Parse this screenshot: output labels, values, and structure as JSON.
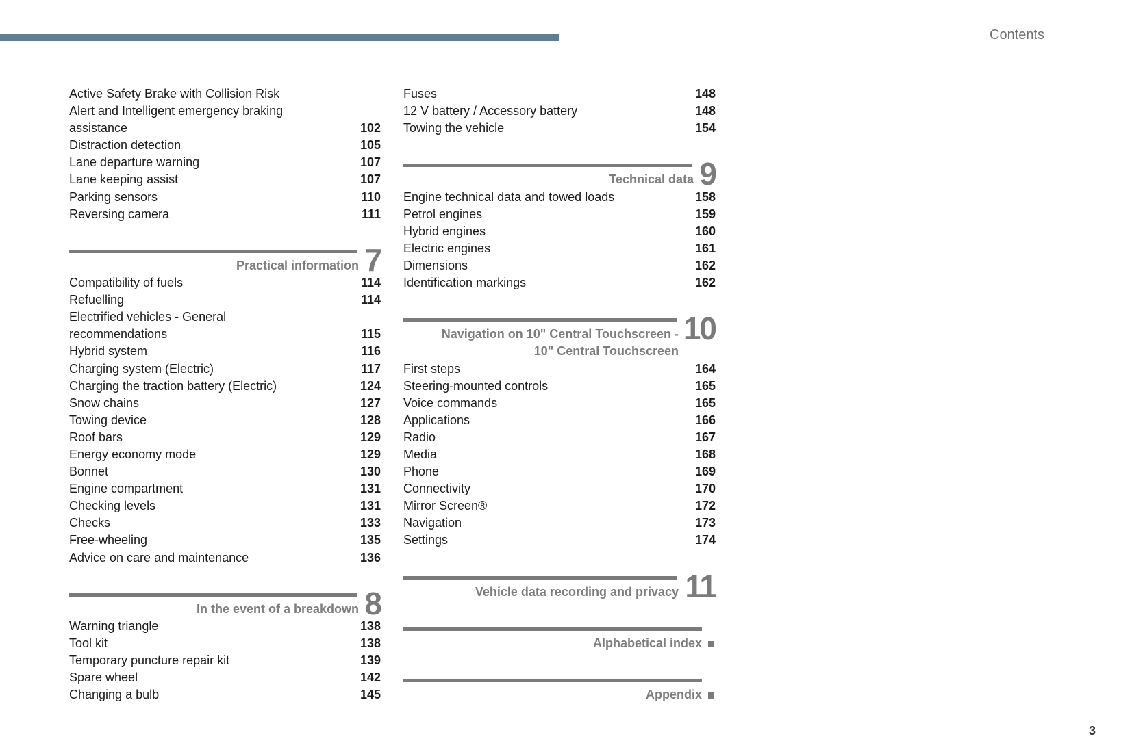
{
  "header": {
    "title": "Contents",
    "accent_color": "#5f7e93"
  },
  "page_number": "3",
  "columns": [
    {
      "blocks": [
        {
          "type": "item",
          "lines": [
            "Active Safety Brake with Collision Risk",
            "Alert and Intelligent emergency braking",
            "assistance"
          ],
          "page": "102"
        },
        {
          "type": "item",
          "lines": [
            "Distraction detection"
          ],
          "page": "105"
        },
        {
          "type": "item",
          "lines": [
            "Lane departure warning"
          ],
          "page": "107"
        },
        {
          "type": "item",
          "lines": [
            "Lane keeping assist"
          ],
          "page": "107"
        },
        {
          "type": "item",
          "lines": [
            "Parking sensors"
          ],
          "page": "110"
        },
        {
          "type": "item",
          "lines": [
            "Reversing camera"
          ],
          "page": "111"
        },
        {
          "type": "section",
          "lines": [
            "Practical information"
          ],
          "number": "7"
        },
        {
          "type": "item",
          "lines": [
            "Compatibility of fuels"
          ],
          "page": "114"
        },
        {
          "type": "item",
          "lines": [
            "Refuelling"
          ],
          "page": "114"
        },
        {
          "type": "item",
          "lines": [
            "Electrified vehicles - General",
            "recommendations"
          ],
          "page": "115"
        },
        {
          "type": "item",
          "lines": [
            "Hybrid system"
          ],
          "page": "116"
        },
        {
          "type": "item",
          "lines": [
            "Charging system (Electric)"
          ],
          "page": "117"
        },
        {
          "type": "item",
          "lines": [
            "Charging the traction battery (Electric)"
          ],
          "page": "124"
        },
        {
          "type": "item",
          "lines": [
            "Snow chains"
          ],
          "page": "127"
        },
        {
          "type": "item",
          "lines": [
            "Towing device"
          ],
          "page": "128"
        },
        {
          "type": "item",
          "lines": [
            "Roof bars"
          ],
          "page": "129"
        },
        {
          "type": "item",
          "lines": [
            "Energy economy mode"
          ],
          "page": "129"
        },
        {
          "type": "item",
          "lines": [
            "Bonnet"
          ],
          "page": "130"
        },
        {
          "type": "item",
          "lines": [
            "Engine compartment"
          ],
          "page": "131"
        },
        {
          "type": "item",
          "lines": [
            "Checking levels"
          ],
          "page": "131"
        },
        {
          "type": "item",
          "lines": [
            "Checks"
          ],
          "page": "133"
        },
        {
          "type": "item",
          "lines": [
            "Free-wheeling"
          ],
          "page": "135"
        },
        {
          "type": "item",
          "lines": [
            "Advice on care and maintenance"
          ],
          "page": "136"
        },
        {
          "type": "section",
          "lines": [
            "In the event of a breakdown"
          ],
          "number": "8"
        },
        {
          "type": "item",
          "lines": [
            "Warning triangle"
          ],
          "page": "138"
        },
        {
          "type": "item",
          "lines": [
            "Tool kit"
          ],
          "page": "138"
        },
        {
          "type": "item",
          "lines": [
            "Temporary puncture repair kit"
          ],
          "page": "139"
        },
        {
          "type": "item",
          "lines": [
            "Spare wheel"
          ],
          "page": "142"
        },
        {
          "type": "item",
          "lines": [
            "Changing a bulb"
          ],
          "page": "145"
        }
      ]
    },
    {
      "blocks": [
        {
          "type": "item",
          "lines": [
            "Fuses"
          ],
          "page": "148"
        },
        {
          "type": "item",
          "lines": [
            "12 V battery / Accessory battery"
          ],
          "page": "148"
        },
        {
          "type": "item",
          "lines": [
            "Towing the vehicle"
          ],
          "page": "154"
        },
        {
          "type": "section",
          "lines": [
            "Technical data"
          ],
          "number": "9"
        },
        {
          "type": "item",
          "lines": [
            "Engine technical data and towed loads"
          ],
          "page": "158"
        },
        {
          "type": "item",
          "lines": [
            "Petrol engines"
          ],
          "page": "159"
        },
        {
          "type": "item",
          "lines": [
            "Hybrid engines"
          ],
          "page": "160"
        },
        {
          "type": "item",
          "lines": [
            "Electric engines"
          ],
          "page": "161"
        },
        {
          "type": "item",
          "lines": [
            "Dimensions"
          ],
          "page": "162"
        },
        {
          "type": "item",
          "lines": [
            "Identification markings"
          ],
          "page": "162"
        },
        {
          "type": "section",
          "lines": [
            "Navigation on 10\" Central Touchscreen -",
            "10\" Central Touchscreen"
          ],
          "number": "10"
        },
        {
          "type": "item",
          "lines": [
            "First steps"
          ],
          "page": "164"
        },
        {
          "type": "item",
          "lines": [
            "Steering-mounted controls"
          ],
          "page": "165"
        },
        {
          "type": "item",
          "lines": [
            "Voice commands"
          ],
          "page": "165"
        },
        {
          "type": "item",
          "lines": [
            "Applications"
          ],
          "page": "166"
        },
        {
          "type": "item",
          "lines": [
            "Radio"
          ],
          "page": "167"
        },
        {
          "type": "item",
          "lines": [
            "Media"
          ],
          "page": "168"
        },
        {
          "type": "item",
          "lines": [
            "Phone"
          ],
          "page": "169"
        },
        {
          "type": "item",
          "lines": [
            "Connectivity"
          ],
          "page": "170"
        },
        {
          "type": "item",
          "lines": [
            "Mirror Screen®"
          ],
          "page": "172"
        },
        {
          "type": "item",
          "lines": [
            "Navigation"
          ],
          "page": "173"
        },
        {
          "type": "item",
          "lines": [
            "Settings"
          ],
          "page": "174"
        },
        {
          "type": "section",
          "lines": [
            "Vehicle data recording and privacy"
          ],
          "number": "11"
        },
        {
          "type": "section",
          "lines": [
            "Alphabetical index"
          ],
          "marker": "square"
        },
        {
          "type": "section",
          "lines": [
            "Appendix"
          ],
          "marker": "square"
        }
      ]
    }
  ]
}
